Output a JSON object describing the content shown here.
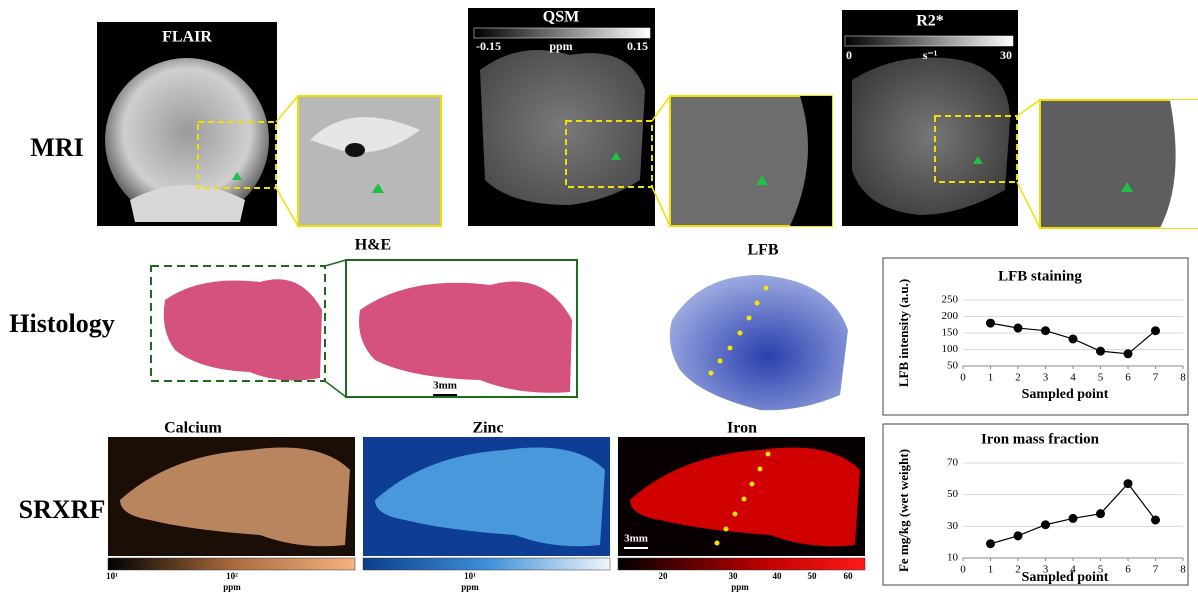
{
  "figure": {
    "rows": [
      "MRI",
      "Histology",
      "SRXRF"
    ],
    "flair": {
      "title": "FLAIR"
    },
    "qsm": {
      "title": "QSM",
      "min": "-0.15",
      "unit": "ppm",
      "max": "0.15"
    },
    "r2star": {
      "title": "R2*",
      "min": "0",
      "unit": "s⁻¹",
      "max": "30"
    },
    "he": {
      "title": "H&E",
      "scale": "3mm"
    },
    "lfb": {
      "title": "LFB"
    },
    "calcium": {
      "title": "Calcium",
      "ticks": [
        "10¹",
        "10²"
      ],
      "unit": "ppm"
    },
    "zinc": {
      "title": "Zinc",
      "ticks": [
        "10¹"
      ],
      "unit": "ppm"
    },
    "iron": {
      "title": "Iron",
      "scale": "3mm",
      "ticks": [
        "20",
        "30",
        "40",
        "50",
        "60"
      ],
      "unit": "ppm"
    }
  },
  "chart_data": [
    {
      "type": "line",
      "title": "LFB staining",
      "x_label": "Sampled point",
      "y_label": "LFB intensity (a.u.)",
      "x": [
        1,
        2,
        3,
        4,
        5,
        6,
        7
      ],
      "values": [
        180,
        165,
        157,
        132,
        95,
        87,
        157
      ],
      "color": "#000000",
      "xlim": [
        0,
        8
      ],
      "xticks": [
        0,
        1,
        2,
        3,
        4,
        5,
        6,
        7,
        8
      ],
      "ylim": [
        50,
        250
      ],
      "yticks": [
        50,
        100,
        150,
        200,
        250
      ],
      "grid": true
    },
    {
      "type": "line",
      "title": "Iron mass fraction",
      "x_label": "Sampled point",
      "y_label": "Fe mg/kg (wet weight)",
      "x": [
        1,
        2,
        3,
        4,
        5,
        6,
        7
      ],
      "values": [
        19,
        24,
        31,
        35,
        38,
        57,
        34
      ],
      "color": "#000000",
      "xlim": [
        0,
        8
      ],
      "xticks": [
        0,
        1,
        2,
        3,
        4,
        5,
        6,
        7,
        8
      ],
      "ylim": [
        10,
        70
      ],
      "yticks": [
        10,
        30,
        50,
        70
      ],
      "grid": true
    }
  ]
}
